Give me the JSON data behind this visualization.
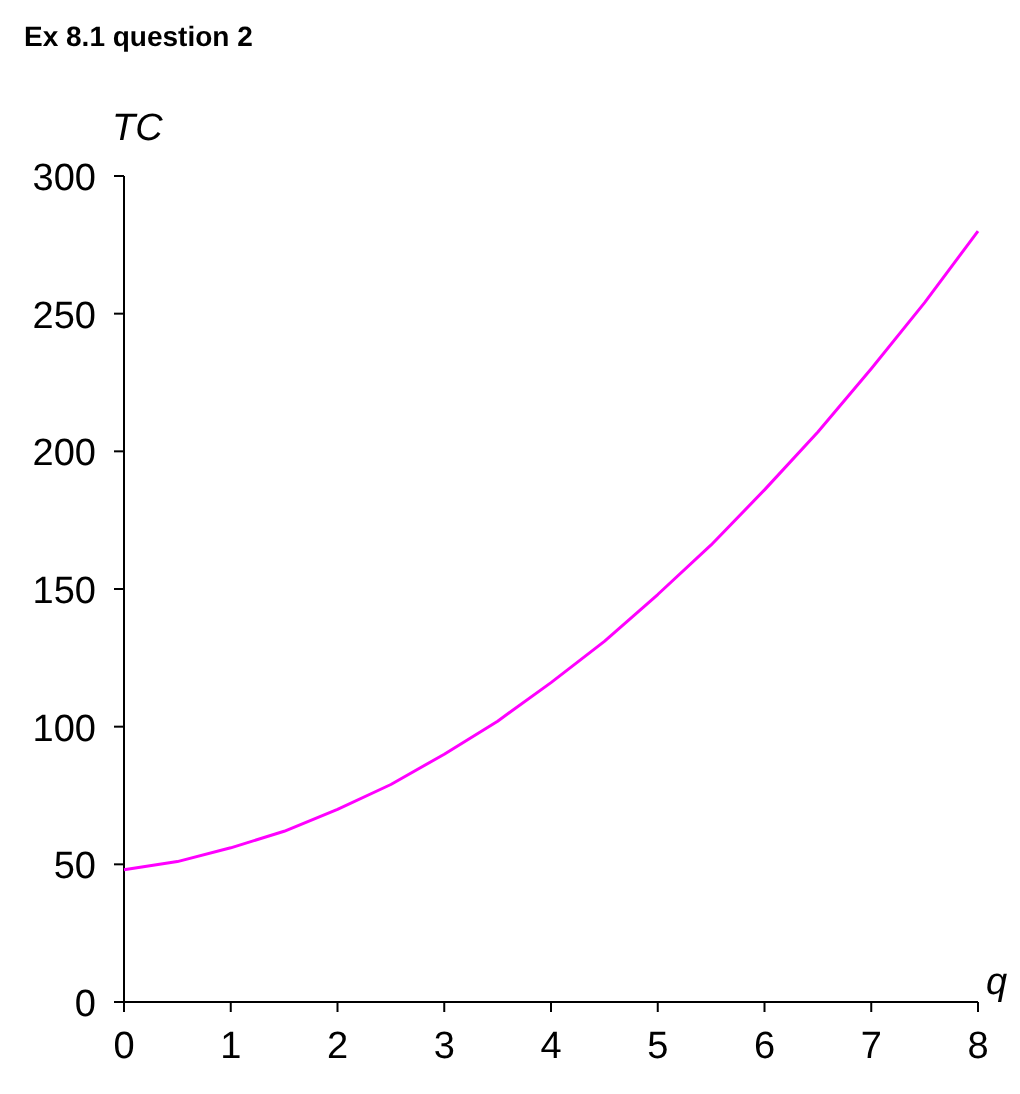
{
  "chart_data": {
    "type": "line",
    "title": "Ex 8.1 question 2",
    "xlabel": "q",
    "ylabel": "TC",
    "x": [
      0,
      0.5,
      1,
      1.5,
      2,
      2.5,
      3,
      3.5,
      4,
      4.5,
      5,
      5.5,
      6,
      6.5,
      7,
      7.5,
      8
    ],
    "series": [
      {
        "color": "#ff00ff",
        "values": [
          48,
          51,
          56,
          62,
          70,
          79,
          90,
          102,
          116,
          131,
          148,
          166,
          186,
          207,
          230,
          254,
          280
        ]
      }
    ],
    "xlim": [
      0,
      8
    ],
    "xticks": [
      0,
      1,
      2,
      3,
      4,
      5,
      6,
      7,
      8
    ],
    "ylim": [
      0,
      300
    ],
    "yticks": [
      0,
      50,
      100,
      150,
      200,
      250,
      300
    ],
    "grid": false,
    "marker": "none",
    "line_style": "solid"
  }
}
